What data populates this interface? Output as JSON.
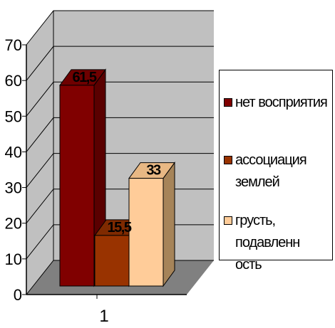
{
  "chart_data": {
    "type": "bar",
    "categories": [
      "1"
    ],
    "series": [
      {
        "name": "нет восприятия",
        "values": [
          61.5
        ],
        "label": "61,5",
        "color": "#800000",
        "side": "#5a0000",
        "top": "#6e0000"
      },
      {
        "name": "ассоциация землей",
        "values": [
          15.5
        ],
        "label": "15,5",
        "color": "#993300",
        "side": "#6b2400",
        "top": "#7f2a00"
      },
      {
        "name": "грусть, подавленность",
        "values": [
          33
        ],
        "label": "33",
        "color": "#ffcc99",
        "side": "#a68459",
        "top": "#e8b884"
      }
    ],
    "yticks": [
      0,
      10,
      20,
      30,
      40,
      50,
      60,
      70
    ],
    "ylim": [
      0,
      70
    ],
    "grid": true,
    "legend_position": "right",
    "legend": [
      {
        "text": "нет восприятия",
        "color": "#800000"
      },
      {
        "text": "ассоциация\nземлей",
        "color": "#993300"
      },
      {
        "text": "грусть, подавленн\nость",
        "color": "#ffcc99"
      }
    ],
    "colors": {
      "wall": "#c0c0c0",
      "floor": "#808080",
      "gridline": "#000000"
    }
  }
}
